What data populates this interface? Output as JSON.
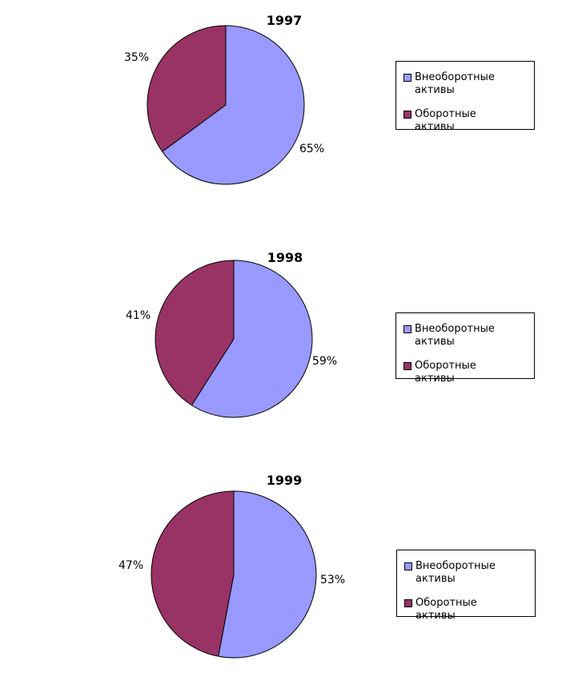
{
  "colors": {
    "non_current": "#9999ff",
    "current": "#993366",
    "outline": "#000000"
  },
  "chart_data": [
    {
      "type": "pie",
      "title": "1997",
      "slices": [
        {
          "name": "Внеоборотные активы",
          "value": 65,
          "label": "65%"
        },
        {
          "name": "Оборотные активы",
          "value": 35,
          "label": "35%"
        }
      ],
      "legend": [
        "Внеоборотные активы",
        "Оборотные активы"
      ],
      "legend_position": "right"
    },
    {
      "type": "pie",
      "title": "1998",
      "slices": [
        {
          "name": "Внеоборотные активы",
          "value": 59,
          "label": "59%"
        },
        {
          "name": "Оборотные активы",
          "value": 41,
          "label": "41%"
        }
      ],
      "legend": [
        "Внеоборотные активы",
        "Оборотные активы"
      ],
      "legend_position": "right"
    },
    {
      "type": "pie",
      "title": "1999",
      "slices": [
        {
          "name": "Внеоборотные активы",
          "value": 53,
          "label": "53%"
        },
        {
          "name": "Оборотные активы",
          "value": 47,
          "label": "47%"
        }
      ],
      "legend": [
        "Внеоборотные активы",
        "Оборотные активы"
      ],
      "legend_position": "right"
    }
  ]
}
